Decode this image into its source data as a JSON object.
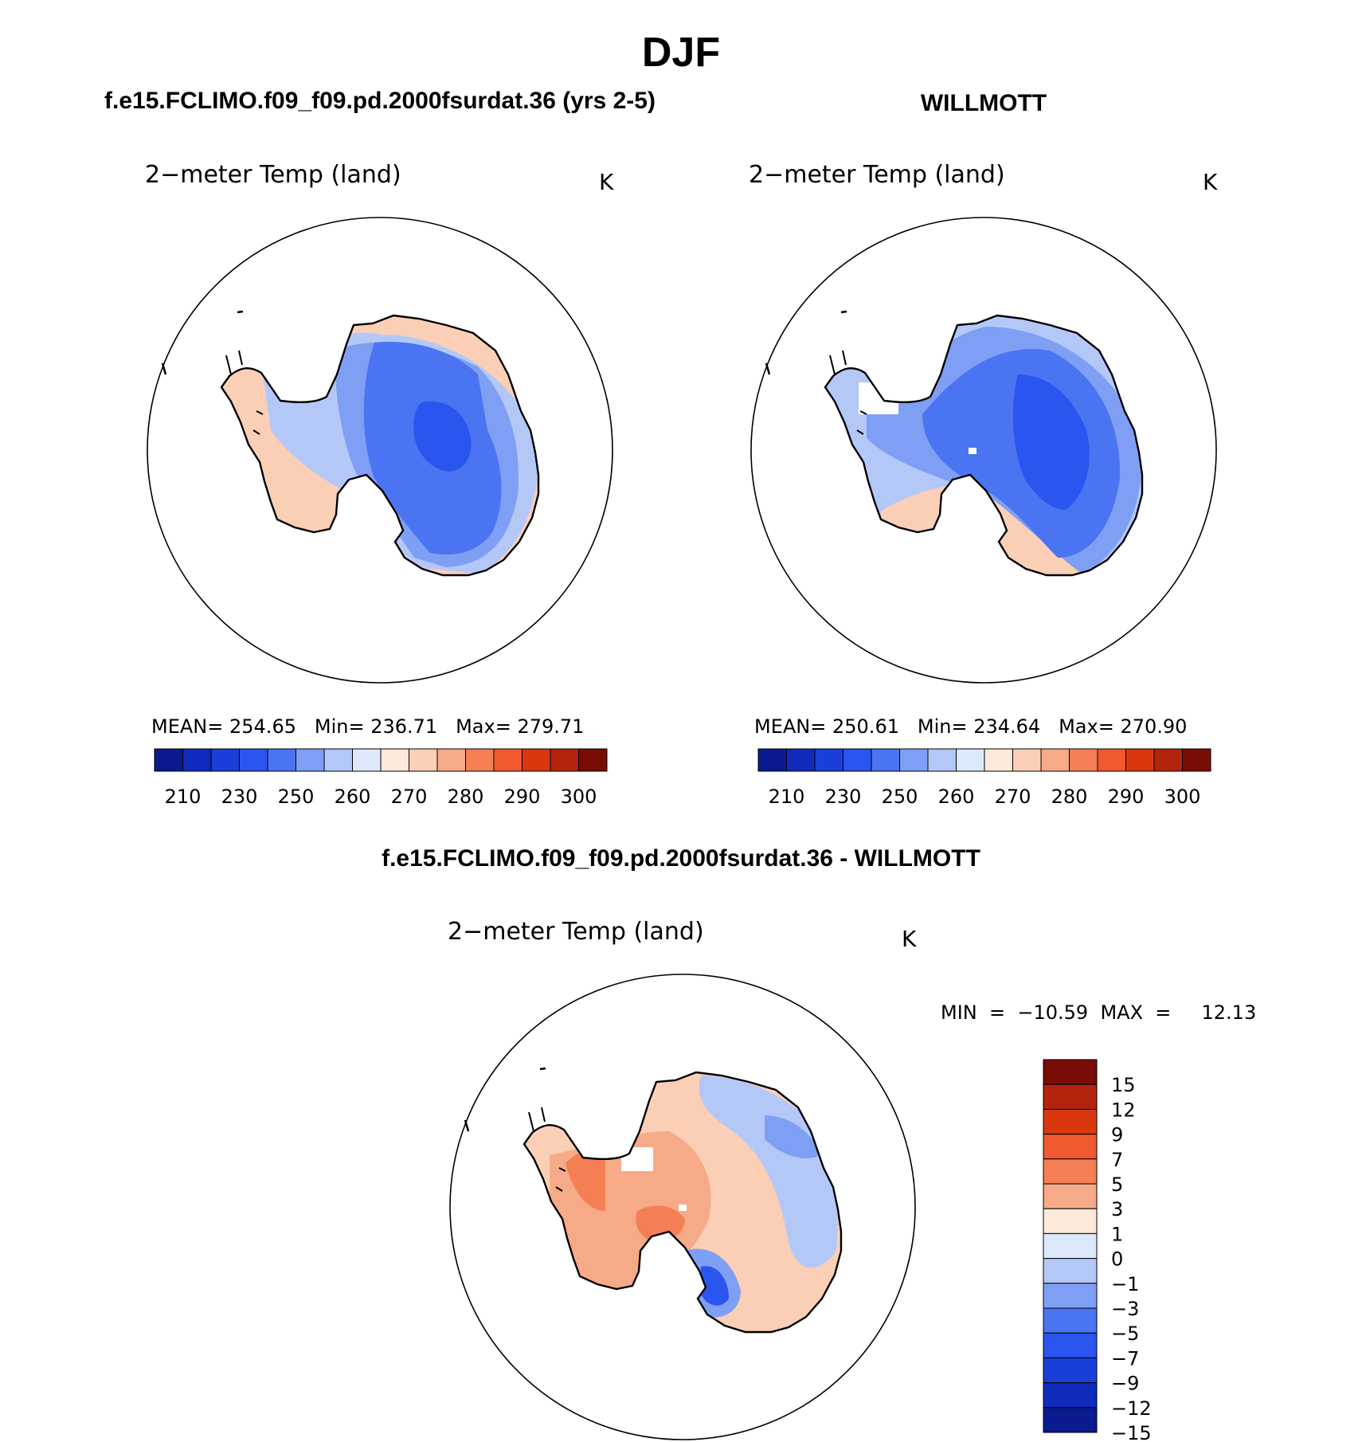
{
  "figure": {
    "title": "DJF"
  },
  "panels": {
    "model": {
      "header": "f.e15.FCLIMO.f09_f09.pd.2000fsurdat.36 (yrs 2-5)",
      "variable": "2−meter Temp (land)",
      "units": "K",
      "stats": {
        "mean_label": "MEAN=",
        "mean": "254.65",
        "min_label": "Min=",
        "min": "236.71",
        "max_label": "Max=",
        "max": "279.71"
      }
    },
    "obs": {
      "header": "WILLMOTT",
      "variable": "2−meter Temp (land)",
      "units": "K",
      "stats": {
        "mean_label": "MEAN=",
        "mean": "250.61",
        "min_label": "Min=",
        "min": "234.64",
        "max_label": "Max=",
        "max": "270.90"
      }
    },
    "diff": {
      "header": "f.e15.FCLIMO.f09_f09.pd.2000fsurdat.36 - WILLMOTT",
      "variable": "2−meter Temp (land)",
      "units": "K",
      "minmax": "MIN  =  −10.59  MAX  =     12.13"
    }
  },
  "abs_colorbar": {
    "colors": [
      "#0a1a8f",
      "#0f2bbd",
      "#1a3fd9",
      "#2a55ee",
      "#4a74f2",
      "#7f9ff5",
      "#b4c8f8",
      "#dce8fb",
      "#fde9d9",
      "#fbcfb6",
      "#f7aa88",
      "#f47f55",
      "#f0592f",
      "#d9380f",
      "#b4240c",
      "#7a0c06"
    ],
    "tick_labels": [
      "210",
      "230",
      "250",
      "260",
      "270",
      "280",
      "290",
      "300"
    ]
  },
  "diff_colorbar": {
    "colors": [
      "#7a0c06",
      "#b4240c",
      "#d9380f",
      "#f0592f",
      "#f47f55",
      "#f7aa88",
      "#fde9d9",
      "#dce8fb",
      "#b4c8f8",
      "#7f9ff5",
      "#4a74f2",
      "#2a55ee",
      "#1a3fd9",
      "#0f2bbd",
      "#0a1a8f"
    ],
    "tick_labels": [
      "15",
      "12",
      "9",
      "7",
      "5",
      "3",
      "1",
      "0",
      "−1",
      "−3",
      "−5",
      "−7",
      "−9",
      "−12",
      "−15"
    ]
  },
  "map_colors": {
    "outline": "#000000",
    "model_fill": [
      "#fbcfb6",
      "#b4c8f8",
      "#7f9ff5",
      "#4a74f2",
      "#2a55ee"
    ],
    "obs_fill": [
      "#fbcfb6",
      "#b4c8f8",
      "#7f9ff5",
      "#4a74f2",
      "#2a55ee"
    ],
    "diff_fill": [
      "#fbcfb6",
      "#f7aa88",
      "#f47f55",
      "#b4c8f8",
      "#4a74f2",
      "#2a55ee"
    ]
  }
}
